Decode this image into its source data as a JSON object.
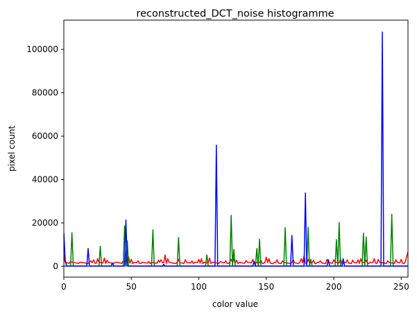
{
  "chart_data": {
    "type": "line",
    "title": "reconstructed_DCT_noise histogramme",
    "xlabel": "color value",
    "ylabel": "pixel count",
    "xlim": [
      0,
      255
    ],
    "ylim": [
      -5000,
      113500
    ],
    "xticks": [
      0,
      50,
      100,
      150,
      200,
      250
    ],
    "yticks": [
      0,
      20000,
      40000,
      60000,
      80000,
      100000
    ],
    "grid": false,
    "legend": "none",
    "series": [
      {
        "color": "#ff0000",
        "baseline": 1200,
        "jitter": 700,
        "peaks": [
          [
            0,
            5500
          ],
          [
            5,
            2200
          ],
          [
            12,
            1800
          ],
          [
            20,
            2500
          ],
          [
            22,
            3000
          ],
          [
            25,
            3500
          ],
          [
            30,
            3800
          ],
          [
            32,
            2800
          ],
          [
            38,
            1800
          ],
          [
            44,
            2400
          ],
          [
            48,
            4200
          ],
          [
            50,
            3200
          ],
          [
            55,
            2500
          ],
          [
            63,
            2200
          ],
          [
            70,
            2800
          ],
          [
            72,
            3000
          ],
          [
            75,
            5200
          ],
          [
            77,
            3500
          ],
          [
            85,
            3200
          ],
          [
            90,
            3000
          ],
          [
            95,
            2500
          ],
          [
            100,
            3200
          ],
          [
            102,
            3500
          ],
          [
            108,
            3800
          ],
          [
            116,
            2200
          ],
          [
            120,
            2500
          ],
          [
            124,
            3200
          ],
          [
            126,
            3400
          ],
          [
            128,
            2800
          ],
          [
            135,
            2600
          ],
          [
            140,
            3200
          ],
          [
            146,
            2800
          ],
          [
            150,
            4200
          ],
          [
            152,
            3500
          ],
          [
            158,
            3000
          ],
          [
            162,
            2500
          ],
          [
            170,
            3000
          ],
          [
            176,
            3500
          ],
          [
            178,
            4800
          ],
          [
            181,
            3200
          ],
          [
            185,
            2800
          ],
          [
            190,
            2500
          ],
          [
            195,
            3200
          ],
          [
            200,
            3000
          ],
          [
            205,
            3500
          ],
          [
            210,
            3000
          ],
          [
            214,
            2800
          ],
          [
            218,
            3000
          ],
          [
            220,
            3500
          ],
          [
            224,
            2800
          ],
          [
            230,
            3500
          ],
          [
            233,
            3200
          ],
          [
            240,
            2500
          ],
          [
            246,
            3000
          ],
          [
            250,
            3200
          ],
          [
            254,
            4500
          ],
          [
            255,
            6500
          ]
        ]
      },
      {
        "color": "#008000",
        "baseline": 100,
        "jitter": 0,
        "peaks": [
          [
            6,
            15500
          ],
          [
            27,
            9200
          ],
          [
            45,
            18500
          ],
          [
            47,
            11800
          ],
          [
            66,
            16800
          ],
          [
            85,
            13300
          ],
          [
            106,
            5200
          ],
          [
            124,
            23500
          ],
          [
            126,
            7800
          ],
          [
            143,
            8200
          ],
          [
            145,
            12500
          ],
          [
            164,
            17800
          ],
          [
            181,
            18000
          ],
          [
            183,
            3200
          ],
          [
            202,
            12300
          ],
          [
            204,
            20200
          ],
          [
            222,
            15300
          ],
          [
            224,
            13500
          ],
          [
            243,
            24000
          ]
        ]
      },
      {
        "color": "#0000ff",
        "baseline": 100,
        "jitter": 0,
        "peaks": [
          [
            0,
            15500
          ],
          [
            1,
            3000
          ],
          [
            18,
            8200
          ],
          [
            36,
            1500
          ],
          [
            46,
            21300
          ],
          [
            74,
            900
          ],
          [
            113,
            55800
          ],
          [
            141,
            2300
          ],
          [
            169,
            14200
          ],
          [
            179,
            33800
          ],
          [
            196,
            3000
          ],
          [
            207,
            3500
          ],
          [
            236,
            108000
          ]
        ]
      }
    ]
  }
}
